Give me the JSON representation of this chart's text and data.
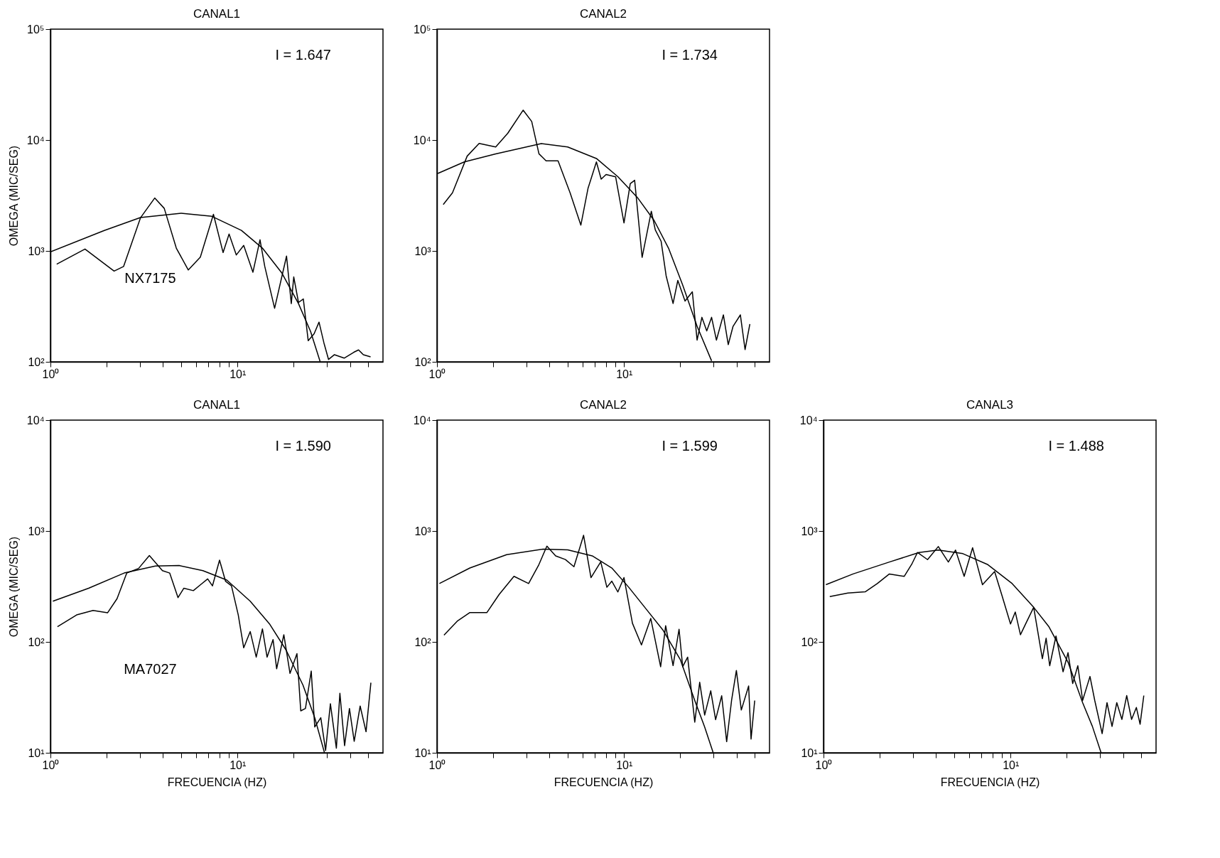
{
  "chart_data": [
    {
      "type": "line",
      "title": "CANAL1",
      "ylabel": "OMEGA (MIC/SEG)",
      "log": "xy",
      "grid": false,
      "xlim": [
        1,
        60
      ],
      "ylim": [
        100,
        100000
      ],
      "xticks": [
        {
          "value": 1,
          "label": "10⁰"
        },
        {
          "value": 2,
          "label": null
        },
        {
          "value": 3,
          "label": null
        },
        {
          "value": 4,
          "label": null
        },
        {
          "value": 5,
          "label": null
        },
        {
          "value": 6,
          "label": null
        },
        {
          "value": 7,
          "label": null
        },
        {
          "value": 8,
          "label": null
        },
        {
          "value": 9,
          "label": null
        },
        {
          "value": 10,
          "label": "10¹"
        },
        {
          "value": 20,
          "label": null
        },
        {
          "value": 30,
          "label": null
        },
        {
          "value": 40,
          "label": null
        },
        {
          "value": 50,
          "label": null
        }
      ],
      "yticks": [
        {
          "value": 100,
          "label": "10²"
        },
        {
          "value": 1000,
          "label": "10³"
        },
        {
          "value": 10000,
          "label": "10⁴"
        },
        {
          "value": 100000,
          "label": "10⁵"
        }
      ],
      "annotations": [
        "I = 1.647",
        "NX7175"
      ],
      "series": [
        {
          "type": "line",
          "color": "#000000",
          "x": [
            1.08,
            1.53,
            2.19,
            2.46,
            3.03,
            3.61,
            4.06,
            4.71,
            5.46,
            6.33,
            7.44,
            8.38,
            9.02,
            9.86,
            10.8,
            12.1,
            13.2,
            14.0,
            15.8,
            18.3,
            19.4,
            20.0,
            21.2,
            22.5,
            23.9,
            25.7,
            27.3,
            29.0,
            30.7,
            33.0,
            37.2,
            41.9,
            44.4,
            47.1,
            51.5
          ],
          "values": [
            760,
            1040,
            658,
            724,
            1990,
            3000,
            2420,
            1060,
            673,
            879,
            2140,
            966,
            1420,
            920,
            1120,
            643,
            1260,
            724,
            304,
            899,
            335,
            583,
            343,
            369,
            155,
            179,
            228,
            148,
            105,
            116,
            108,
            122,
            128,
            116,
            111
          ]
        },
        {
          "type": "line",
          "color": "#000000",
          "x": [
            1.0,
            1.94,
            3.03,
            5.0,
            7.3,
            10.5,
            13.6,
            17.3,
            21.2,
            24.6,
            27.7
          ],
          "values": [
            980,
            1530,
            2000,
            2190,
            2050,
            1530,
            1060,
            630,
            335,
            188,
            100
          ]
        }
      ]
    },
    {
      "type": "line",
      "title": "CANAL2",
      "log": "xy",
      "grid": false,
      "xlim": [
        1,
        60
      ],
      "ylim": [
        100,
        100000
      ],
      "xticks": [
        {
          "value": 1,
          "label": "10⁰"
        },
        {
          "value": 2,
          "label": null
        },
        {
          "value": 3,
          "label": null
        },
        {
          "value": 4,
          "label": null
        },
        {
          "value": 5,
          "label": null
        },
        {
          "value": 6,
          "label": null
        },
        {
          "value": 7,
          "label": null
        },
        {
          "value": 8,
          "label": null
        },
        {
          "value": 9,
          "label": null
        },
        {
          "value": 10,
          "label": "10¹"
        },
        {
          "value": 20,
          "label": null
        },
        {
          "value": 30,
          "label": null
        },
        {
          "value": 40,
          "label": null
        },
        {
          "value": 50,
          "label": null
        }
      ],
      "yticks": [
        {
          "value": 100,
          "label": "10²"
        },
        {
          "value": 1000,
          "label": "10³"
        },
        {
          "value": 10000,
          "label": "10⁴"
        },
        {
          "value": 100000,
          "label": "10⁵"
        }
      ],
      "annotations": [
        "I = 1.734"
      ],
      "series": [
        {
          "type": "line",
          "color": "#000000",
          "x": [
            1.08,
            1.21,
            1.45,
            1.68,
            2.06,
            2.39,
            2.89,
            3.21,
            3.51,
            3.83,
            4.44,
            5.15,
            5.88,
            6.42,
            7.12,
            7.55,
            8.02,
            9.02,
            10.0,
            10.8,
            11.4,
            12.5,
            14.0,
            14.7,
            15.8,
            16.8,
            18.3,
            19.4,
            21.2,
            23.2,
            24.6,
            26.1,
            27.7,
            29.4,
            31.2,
            34.0,
            36.1,
            38.3,
            41.9,
            44.4,
            47.1
          ],
          "values": [
            2620,
            3340,
            7160,
            9310,
            8660,
            11500,
            18600,
            14700,
            7510,
            6500,
            6500,
            3340,
            1710,
            3660,
            6350,
            4440,
            4890,
            4660,
            1790,
            4040,
            4340,
            875,
            2280,
            1550,
            1220,
            597,
            336,
            542,
            353,
            428,
            157,
            252,
            190,
            252,
            157,
            265,
            143,
            209,
            265,
            129,
            219
          ]
        },
        {
          "type": "line",
          "color": "#000000",
          "x": [
            1.01,
            1.4,
            2.06,
            3.61,
            5.0,
            7.12,
            9.29,
            11.8,
            14.5,
            17.3,
            20.6,
            24.6,
            29.4
          ],
          "values": [
            5000,
            6350,
            7510,
            9300,
            8660,
            6820,
            4660,
            3030,
            1880,
            1060,
            493,
            209,
            102
          ]
        }
      ]
    },
    {
      "type": "line",
      "title": "CANAL1",
      "xlabel": "FRECUENCIA (HZ)",
      "ylabel": "OMEGA (MIC/SEG)",
      "log": "xy",
      "grid": false,
      "xlim": [
        1,
        60
      ],
      "ylim": [
        10,
        10000
      ],
      "xticks": [
        {
          "value": 1,
          "label": "10⁰"
        },
        {
          "value": 2,
          "label": null
        },
        {
          "value": 3,
          "label": null
        },
        {
          "value": 4,
          "label": null
        },
        {
          "value": 5,
          "label": null
        },
        {
          "value": 6,
          "label": null
        },
        {
          "value": 7,
          "label": null
        },
        {
          "value": 8,
          "label": null
        },
        {
          "value": 9,
          "label": null
        },
        {
          "value": 10,
          "label": "10¹"
        },
        {
          "value": 20,
          "label": null
        },
        {
          "value": 30,
          "label": null
        },
        {
          "value": 40,
          "label": null
        },
        {
          "value": 50,
          "label": null
        }
      ],
      "yticks": [
        {
          "value": 10,
          "label": "10¹"
        },
        {
          "value": 100,
          "label": "10²"
        },
        {
          "value": 1000,
          "label": "10³"
        },
        {
          "value": 10000,
          "label": "10⁴"
        }
      ],
      "annotations": [
        "I = 1.590",
        "MA7027"
      ],
      "series": [
        {
          "type": "line",
          "color": "#000000",
          "x": [
            1.09,
            1.38,
            1.69,
            2.02,
            2.27,
            2.56,
            2.96,
            3.38,
            3.97,
            4.34,
            4.81,
            5.17,
            5.81,
            6.35,
            6.93,
            7.35,
            8.02,
            8.63,
            9.29,
            10.1,
            10.8,
            11.7,
            12.6,
            13.6,
            14.4,
            15.5,
            16.2,
            17.7,
            19.1,
            20.8,
            21.8,
            23.1,
            24.8,
            25.9,
            27.9,
            29.6,
            31.4,
            33.8,
            35.3,
            37.4,
            39.7,
            42.1,
            45.3,
            48.7,
            51.7
          ],
          "values": [
            137,
            175,
            192,
            183,
            245,
            418,
            460,
            601,
            439,
            418,
            251,
            305,
            290,
            328,
            370,
            320,
            546,
            353,
            320,
            175,
            88.5,
            124,
            72.9,
            131,
            72.9,
            105,
            57.3,
            116,
            52.0,
            78.5,
            23.9,
            25.1,
            54.6,
            17.1,
            20.7,
            10.5,
            27.7,
            11.0,
            34.4,
            11.6,
            25.1,
            12.7,
            26.4,
            15.5,
            42.9
          ]
        },
        {
          "type": "line",
          "color": "#000000",
          "x": [
            1.03,
            1.6,
            2.48,
            3.64,
            4.88,
            6.53,
            8.77,
            11.7,
            14.9,
            18.2,
            22.4,
            25.9,
            29.2
          ],
          "values": [
            233,
            305,
            418,
            483,
            488,
            439,
            361,
            233,
            144,
            84.4,
            40.8,
            20.7,
            10
          ]
        }
      ]
    },
    {
      "type": "line",
      "title": "CANAL2",
      "xlabel": "FRECUENCIA (HZ)",
      "log": "xy",
      "grid": false,
      "xlim": [
        1,
        60
      ],
      "ylim": [
        10,
        10000
      ],
      "xticks": [
        {
          "value": 1,
          "label": "10⁰"
        },
        {
          "value": 2,
          "label": null
        },
        {
          "value": 3,
          "label": null
        },
        {
          "value": 4,
          "label": null
        },
        {
          "value": 5,
          "label": null
        },
        {
          "value": 6,
          "label": null
        },
        {
          "value": 7,
          "label": null
        },
        {
          "value": 8,
          "label": null
        },
        {
          "value": 9,
          "label": null
        },
        {
          "value": 10,
          "label": "10¹"
        },
        {
          "value": 20,
          "label": null
        },
        {
          "value": 30,
          "label": null
        },
        {
          "value": 40,
          "label": null
        },
        {
          "value": 50,
          "label": null
        }
      ],
      "yticks": [
        {
          "value": 10,
          "label": "10¹"
        },
        {
          "value": 100,
          "label": "10²"
        },
        {
          "value": 1000,
          "label": "10³"
        },
        {
          "value": 10000,
          "label": "10⁴"
        }
      ],
      "annotations": [
        "I = 1.599"
      ],
      "series": [
        {
          "type": "line",
          "color": "#000000",
          "x": [
            1.09,
            1.29,
            1.5,
            1.85,
            2.15,
            2.58,
            3.09,
            3.49,
            3.87,
            4.31,
            4.86,
            5.4,
            6.08,
            6.66,
            7.51,
            8.1,
            8.61,
            9.27,
            10.0,
            11.1,
            12.4,
            13.9,
            15.7,
            16.7,
            18.3,
            19.7,
            20.6,
            21.9,
            23.9,
            25.4,
            27.0,
            29.1,
            30.9,
            33.3,
            35.4,
            37.6,
            39.9,
            42.4,
            46.4,
            47.8,
            50.0
          ],
          "values": [
            115,
            155,
            184,
            184,
            268,
            390,
            336,
            489,
            730,
            597,
            553,
            476,
            914,
            380,
            527,
            311,
            353,
            282,
            380,
            147,
            93.8,
            163,
            59.7,
            140,
            61.2,
            130,
            59.7,
            72.9,
            18.9,
            43.2,
            21.9,
            36.2,
            19.9,
            32.7,
            12.6,
            29.6,
            55.3,
            24.3,
            40.0,
            13.3,
            29.6
          ]
        },
        {
          "type": "line",
          "color": "#000000",
          "x": [
            1.03,
            1.5,
            2.36,
            3.7,
            5.0,
            6.76,
            8.61,
            10.6,
            13.1,
            16.2,
            20.0,
            23.9,
            27.0,
            30.0
          ],
          "values": [
            336,
            464,
            612,
            687,
            677,
            597,
            464,
            311,
            199,
            127,
            69.3,
            29.6,
            17.1,
            10
          ]
        }
      ]
    },
    {
      "type": "line",
      "title": "CANAL3",
      "xlabel": "FRECUENCIA (HZ)",
      "log": "xy",
      "grid": false,
      "xlim": [
        1,
        60
      ],
      "ylim": [
        10,
        10000
      ],
      "xticks": [
        {
          "value": 1,
          "label": "10⁰"
        },
        {
          "value": 2,
          "label": null
        },
        {
          "value": 3,
          "label": null
        },
        {
          "value": 4,
          "label": null
        },
        {
          "value": 5,
          "label": null
        },
        {
          "value": 6,
          "label": null
        },
        {
          "value": 7,
          "label": null
        },
        {
          "value": 8,
          "label": null
        },
        {
          "value": 9,
          "label": null
        },
        {
          "value": 10,
          "label": "10¹"
        },
        {
          "value": 20,
          "label": null
        },
        {
          "value": 30,
          "label": null
        },
        {
          "value": 40,
          "label": null
        },
        {
          "value": 50,
          "label": null
        }
      ],
      "yticks": [
        {
          "value": 10,
          "label": "10¹"
        },
        {
          "value": 100,
          "label": "10²"
        },
        {
          "value": 1000,
          "label": "10³"
        },
        {
          "value": 10000,
          "label": "10⁴"
        }
      ],
      "annotations": [
        "I = 1.488"
      ],
      "series": [
        {
          "type": "line",
          "color": "#000000",
          "x": [
            1.08,
            1.35,
            1.67,
            1.94,
            2.25,
            2.7,
            2.96,
            3.18,
            3.6,
            4.11,
            4.65,
            5.08,
            5.65,
            6.27,
            7.08,
            8.22,
            9.0,
            10.0,
            10.6,
            11.3,
            12.2,
            13.3,
            14.8,
            15.5,
            16.2,
            17.5,
            19.1,
            20.3,
            21.5,
            22.9,
            24.3,
            26.6,
            28.2,
            30.9,
            32.8,
            34.9,
            37.0,
            39.4,
            41.8,
            44.4,
            47.1,
            49.3,
            51.6
          ],
          "values": [
            256,
            276,
            283,
            336,
            410,
            390,
            500,
            640,
            552,
            724,
            525,
            673,
            390,
            706,
            328,
            431,
            262,
            145,
            186,
            116,
            152,
            205,
            70.6,
            108,
            61.0,
            113,
            53.8,
            80.0,
            42.1,
            61.0,
            29.7,
            48.8,
            29.7,
            14.9,
            28.3,
            17.3,
            28.3,
            20.0,
            32.8,
            20.0,
            25.6,
            18.1,
            32.8
          ]
        },
        {
          "type": "line",
          "color": "#000000",
          "x": [
            1.03,
            1.44,
            2.25,
            3.24,
            4.11,
            5.56,
            7.52,
            10.2,
            13.3,
            16.0,
            20.3,
            24.3,
            27.4,
            30.5
          ],
          "values": [
            328,
            410,
            525,
            640,
            673,
            625,
            500,
            336,
            205,
            138,
            65.6,
            28.3,
            17.3,
            10
          ]
        }
      ]
    }
  ]
}
